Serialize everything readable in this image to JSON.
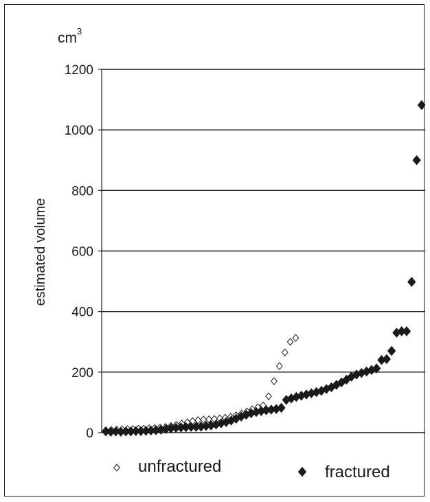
{
  "chart_data": {
    "type": "scatter",
    "unit_base": "cm",
    "unit_exponent": "3",
    "ylabel": "estimated volume",
    "xlabel": "",
    "ylim": [
      0,
      1200
    ],
    "yticks": [
      0,
      200,
      400,
      600,
      800,
      1000,
      1200
    ],
    "x_axis_ticks_shown": false,
    "grid": "horizontal",
    "legend_position": "bottom",
    "series": [
      {
        "name": "unfractured",
        "marker": "open-diamond",
        "color": "#1a1a1a",
        "points": [
          [
            1,
            8
          ],
          [
            2,
            9
          ],
          [
            3,
            10
          ],
          [
            4,
            11
          ],
          [
            5,
            12
          ],
          [
            6,
            12
          ],
          [
            7,
            13
          ],
          [
            8,
            13
          ],
          [
            9,
            14
          ],
          [
            10,
            15
          ],
          [
            11,
            17
          ],
          [
            12,
            19
          ],
          [
            13,
            22
          ],
          [
            14,
            26
          ],
          [
            15,
            30
          ],
          [
            16,
            34
          ],
          [
            17,
            38
          ],
          [
            18,
            41
          ],
          [
            19,
            43
          ],
          [
            20,
            44
          ],
          [
            21,
            45
          ],
          [
            22,
            47
          ],
          [
            23,
            49
          ],
          [
            24,
            52
          ],
          [
            25,
            57
          ],
          [
            26,
            63
          ],
          [
            27,
            70
          ],
          [
            28,
            77
          ],
          [
            29,
            84
          ],
          [
            30,
            90
          ],
          [
            31,
            120
          ],
          [
            32,
            170
          ],
          [
            33,
            220
          ],
          [
            34,
            265
          ],
          [
            35,
            300
          ],
          [
            36,
            313
          ]
        ]
      },
      {
        "name": "fractured",
        "marker": "filled-diamond",
        "color": "#1a1a1a",
        "points": [
          [
            1,
            4
          ],
          [
            2,
            3
          ],
          [
            3,
            4
          ],
          [
            4,
            3
          ],
          [
            5,
            4
          ],
          [
            6,
            4
          ],
          [
            7,
            5
          ],
          [
            8,
            5
          ],
          [
            9,
            6
          ],
          [
            10,
            7
          ],
          [
            11,
            8
          ],
          [
            12,
            10
          ],
          [
            13,
            12
          ],
          [
            14,
            14
          ],
          [
            15,
            16
          ],
          [
            16,
            17
          ],
          [
            17,
            18
          ],
          [
            18,
            19
          ],
          [
            19,
            19
          ],
          [
            20,
            20
          ],
          [
            21,
            22
          ],
          [
            22,
            24
          ],
          [
            23,
            27
          ],
          [
            24,
            31
          ],
          [
            25,
            35
          ],
          [
            26,
            40
          ],
          [
            27,
            46
          ],
          [
            28,
            53
          ],
          [
            29,
            59
          ],
          [
            30,
            64
          ],
          [
            31,
            68
          ],
          [
            32,
            71
          ],
          [
            33,
            74
          ],
          [
            34,
            76
          ],
          [
            35,
            78
          ],
          [
            36,
            82
          ],
          [
            37,
            108
          ],
          [
            38,
            113
          ],
          [
            39,
            118
          ],
          [
            40,
            122
          ],
          [
            41,
            126
          ],
          [
            42,
            130
          ],
          [
            43,
            134
          ],
          [
            44,
            138
          ],
          [
            45,
            144
          ],
          [
            46,
            150
          ],
          [
            47,
            158
          ],
          [
            48,
            166
          ],
          [
            49,
            175
          ],
          [
            50,
            185
          ],
          [
            51,
            192
          ],
          [
            52,
            197
          ],
          [
            53,
            202
          ],
          [
            54,
            207
          ],
          [
            55,
            212
          ],
          [
            56,
            240
          ],
          [
            57,
            243
          ],
          [
            58,
            270
          ],
          [
            59,
            330
          ],
          [
            60,
            335
          ],
          [
            61,
            335
          ],
          [
            62,
            498
          ],
          [
            63,
            900
          ],
          [
            64,
            1082
          ]
        ]
      }
    ]
  }
}
